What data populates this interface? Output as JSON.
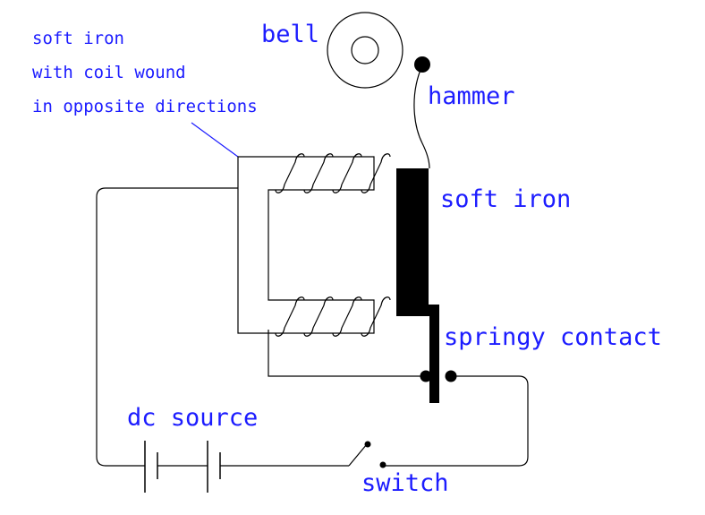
{
  "labels": {
    "coil_note": [
      "soft iron",
      "with coil wound",
      "in opposite directions"
    ],
    "bell": "bell",
    "hammer": "hammer",
    "soft_iron": "soft iron",
    "springy_contact": "springy contact",
    "dc_source": "dc source",
    "switch": "switch"
  },
  "colors": {
    "label": "#1c1cff",
    "line": "#000000"
  }
}
